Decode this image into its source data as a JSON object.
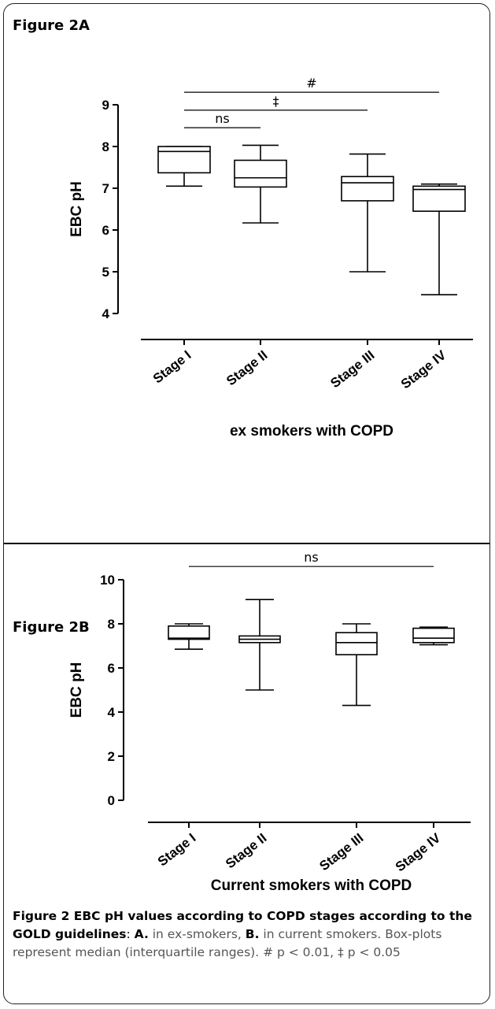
{
  "figure_a_title": "Figure 2A",
  "figure_b_title": "Figure 2B",
  "caption": {
    "lead_bold": "Figure 2 EBC pH values according to COPD stages according to the GOLD guidelines",
    "text_1": ": ",
    "a_label": "A.",
    "text_2": " in ex-smokers, ",
    "b_label": "B.",
    "text_3": " in current smokers.",
    "text_4": "Box-plots represent median (interquartile ranges). # p < 0.01, ‡ p < 0.05"
  },
  "chart_data": [
    {
      "type": "box",
      "ylabel": "EBC pH",
      "xlabel": "ex smokers with COPD",
      "categories": [
        "Stage I",
        "Stage II",
        "Stage III",
        "Stage IV"
      ],
      "ylim": [
        4,
        9
      ],
      "yticks": [
        4,
        5,
        6,
        7,
        8,
        9
      ],
      "boxes": [
        {
          "min": 7.05,
          "q1": 7.37,
          "median": 7.88,
          "q3": 8.0,
          "max": 8.0
        },
        {
          "min": 6.17,
          "q1": 7.03,
          "median": 7.25,
          "q3": 7.67,
          "max": 8.03
        },
        {
          "min": 5.0,
          "q1": 6.7,
          "median": 7.13,
          "q3": 7.28,
          "max": 7.82
        },
        {
          "min": 4.45,
          "q1": 6.45,
          "median": 6.97,
          "q3": 7.05,
          "max": 7.1
        }
      ],
      "annotations": [
        {
          "label": "ns",
          "from": 0,
          "to": 1,
          "y": 8.45
        },
        {
          "label": "‡",
          "from": 0,
          "to": 2,
          "y": 8.87
        },
        {
          "label": "#",
          "from": 0,
          "to": 3,
          "y": 9.3
        }
      ]
    },
    {
      "type": "box",
      "ylabel": "EBC pH",
      "xlabel": "Current smokers with COPD",
      "categories": [
        "Stage I",
        "Stage II",
        "Stage III",
        "Stage IV"
      ],
      "ylim": [
        0,
        10
      ],
      "yticks": [
        0,
        2,
        4,
        6,
        8,
        10
      ],
      "boxes": [
        {
          "min": 6.85,
          "q1": 7.3,
          "median": 7.35,
          "q3": 7.9,
          "max": 8.0
        },
        {
          "min": 5.0,
          "q1": 7.15,
          "median": 7.3,
          "q3": 7.45,
          "max": 9.1
        },
        {
          "min": 4.3,
          "q1": 6.6,
          "median": 7.15,
          "q3": 7.6,
          "max": 8.0
        },
        {
          "min": 7.05,
          "q1": 7.15,
          "median": 7.35,
          "q3": 7.8,
          "max": 7.85
        }
      ],
      "annotations": [
        {
          "label": "ns",
          "from": 0,
          "to": 3,
          "y": 10.6
        }
      ]
    }
  ]
}
